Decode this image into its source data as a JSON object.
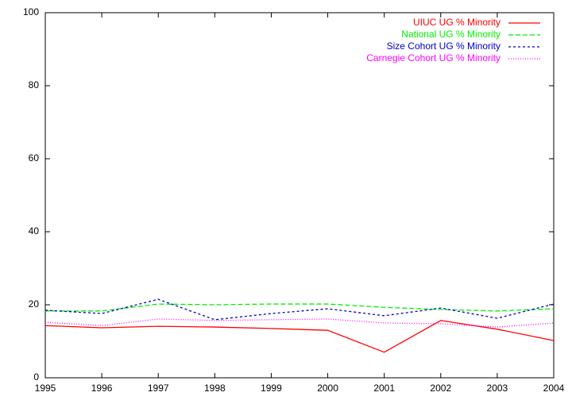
{
  "chart_data": {
    "type": "line",
    "x": [
      1995,
      1996,
      1997,
      1998,
      1999,
      2000,
      2001,
      2002,
      2003,
      2004
    ],
    "xlim": [
      1995,
      2004
    ],
    "xticks": [
      1995,
      1996,
      1997,
      1998,
      1999,
      2000,
      2001,
      2002,
      2003,
      2004
    ],
    "ylim": [
      0,
      100
    ],
    "yticks": [
      0,
      20,
      40,
      60,
      80,
      100
    ],
    "grid": false,
    "legend": "top-right",
    "series": [
      {
        "name": "UIUC UG % Minority",
        "color": "#ff0000",
        "dash": "solid",
        "values": [
          14.3,
          13.7,
          14.1,
          13.9,
          13.5,
          13.0,
          7.0,
          15.7,
          13.3,
          10.2
        ]
      },
      {
        "name": "National UG % Minority",
        "color": "#00ee00",
        "dash": "dashed",
        "values": [
          18.3,
          18.3,
          20.2,
          20.0,
          20.2,
          20.2,
          19.3,
          18.7,
          18.3,
          18.9
        ]
      },
      {
        "name": "Size Cohort UG % Minority",
        "color": "#0000cc",
        "dash": "dotted",
        "values": [
          18.5,
          17.6,
          21.5,
          15.9,
          17.6,
          18.9,
          17.0,
          19.1,
          16.3,
          20.2
        ]
      },
      {
        "name": "Carnegie Cohort UG % Minority",
        "color": "#ff00ff",
        "dash": "fine",
        "values": [
          15.2,
          14.3,
          16.1,
          15.7,
          15.9,
          16.1,
          15.0,
          14.8,
          13.9,
          15.0
        ]
      }
    ]
  }
}
